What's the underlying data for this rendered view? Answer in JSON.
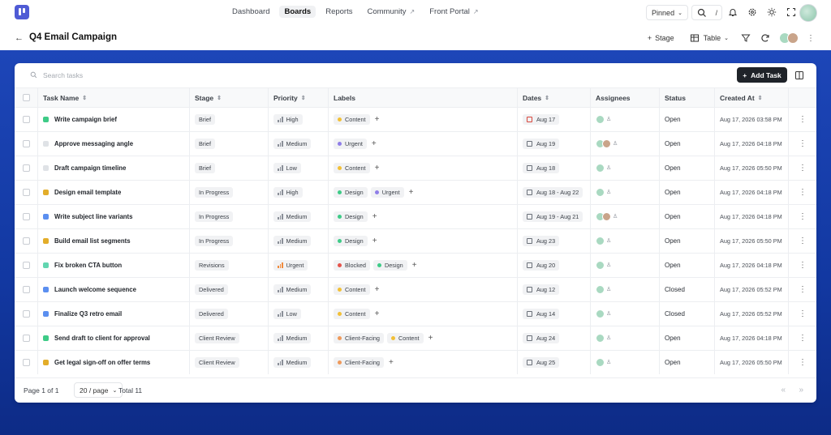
{
  "nav": {
    "links": [
      {
        "label": "Dashboard",
        "active": false,
        "external": false
      },
      {
        "label": "Boards",
        "active": true,
        "external": false
      },
      {
        "label": "Reports",
        "active": false,
        "external": false
      },
      {
        "label": "Community",
        "active": false,
        "external": true
      },
      {
        "label": "Front Portal",
        "active": false,
        "external": true
      }
    ],
    "pinned_label": "Pinned",
    "search_shortcut": "/"
  },
  "header": {
    "title": "Q4 Email Campaign",
    "stage_button": "Stage",
    "view_button": "Table"
  },
  "toolbar": {
    "search_placeholder": "Search tasks",
    "add_task_label": "Add Task"
  },
  "table": {
    "columns": {
      "name": "Task Name",
      "stage": "Stage",
      "priority": "Priority",
      "labels": "Labels",
      "dates": "Dates",
      "assignees": "Assignees",
      "status": "Status",
      "created": "Created At"
    },
    "rows": [
      {
        "color": "#3ecb87",
        "name": "Write campaign brief",
        "stage": "Brief",
        "priority": "High",
        "labels": [
          {
            "text": "Content",
            "color": "#f2c037"
          }
        ],
        "date": "Aug 17",
        "overdue": true,
        "assignees": 1,
        "status": "Open",
        "created": "Aug 17, 2026 03:58 PM"
      },
      {
        "color": "#dfe2e6",
        "name": "Approve messaging angle",
        "stage": "Brief",
        "priority": "Medium",
        "labels": [
          {
            "text": "Urgent",
            "color": "#8f7ee8"
          }
        ],
        "date": "Aug 19",
        "overdue": false,
        "assignees": 2,
        "status": "Open",
        "created": "Aug 17, 2026 04:18 PM"
      },
      {
        "color": "#dfe2e6",
        "name": "Draft campaign timeline",
        "stage": "Brief",
        "priority": "Low",
        "labels": [
          {
            "text": "Content",
            "color": "#f2c037"
          }
        ],
        "date": "Aug 18",
        "overdue": false,
        "assignees": 1,
        "status": "Open",
        "created": "Aug 17, 2026 05:50 PM"
      },
      {
        "color": "#e3ad2a",
        "name": "Design email template",
        "stage": "In Progress",
        "priority": "High",
        "labels": [
          {
            "text": "Design",
            "color": "#3ecb87"
          },
          {
            "text": "Urgent",
            "color": "#8f7ee8"
          }
        ],
        "date": "Aug 18 - Aug 22",
        "overdue": false,
        "assignees": 1,
        "status": "Open",
        "created": "Aug 17, 2026 04:18 PM"
      },
      {
        "color": "#5b8ff0",
        "name": "Write subject line variants",
        "stage": "In Progress",
        "priority": "Medium",
        "labels": [
          {
            "text": "Design",
            "color": "#3ecb87"
          }
        ],
        "date": "Aug 19 - Aug 21",
        "overdue": false,
        "assignees": 2,
        "status": "Open",
        "created": "Aug 17, 2026 04:18 PM"
      },
      {
        "color": "#e3ad2a",
        "name": "Build email list segments",
        "stage": "In Progress",
        "priority": "Medium",
        "labels": [
          {
            "text": "Design",
            "color": "#3ecb87"
          }
        ],
        "date": "Aug 23",
        "overdue": false,
        "assignees": 1,
        "status": "Open",
        "created": "Aug 17, 2026 05:50 PM"
      },
      {
        "color": "#62d6b0",
        "name": "Fix broken CTA button",
        "stage": "Revisions",
        "priority": "Urgent",
        "labels": [
          {
            "text": "Blocked",
            "color": "#e5534b"
          },
          {
            "text": "Design",
            "color": "#3ecb87"
          }
        ],
        "date": "Aug 20",
        "overdue": false,
        "assignees": 1,
        "status": "Open",
        "created": "Aug 17, 2026 04:18 PM"
      },
      {
        "color": "#5b8ff0",
        "name": "Launch welcome sequence",
        "stage": "Delivered",
        "priority": "Medium",
        "labels": [
          {
            "text": "Content",
            "color": "#f2c037"
          }
        ],
        "date": "Aug 12",
        "overdue": false,
        "assignees": 1,
        "status": "Closed",
        "created": "Aug 17, 2026 05:52 PM"
      },
      {
        "color": "#5b8ff0",
        "name": "Finalize Q3 retro email",
        "stage": "Delivered",
        "priority": "Low",
        "labels": [
          {
            "text": "Content",
            "color": "#f2c037"
          }
        ],
        "date": "Aug 14",
        "overdue": false,
        "assignees": 1,
        "status": "Closed",
        "created": "Aug 17, 2026 05:52 PM"
      },
      {
        "color": "#3ecb87",
        "name": "Send draft to client for approval",
        "stage": "Client Review",
        "priority": "Medium",
        "labels": [
          {
            "text": "Client-Facing",
            "color": "#ef9a5b"
          },
          {
            "text": "Content",
            "color": "#f2c037"
          }
        ],
        "date": "Aug 24",
        "overdue": false,
        "assignees": 1,
        "status": "Open",
        "created": "Aug 17, 2026 04:18 PM"
      },
      {
        "color": "#e3ad2a",
        "name": "Get legal sign-off on offer terms",
        "stage": "Client Review",
        "priority": "Medium",
        "labels": [
          {
            "text": "Client-Facing",
            "color": "#ef9a5b"
          }
        ],
        "date": "Aug 25",
        "overdue": false,
        "assignees": 1,
        "status": "Open",
        "created": "Aug 17, 2026 05:50 PM"
      }
    ]
  },
  "footer": {
    "page_text": "Page 1 of 1",
    "page_size": "20 / page",
    "total_text": "Total 11"
  },
  "colors": {
    "accent": "#4f5bd5",
    "stage_background": "#1d46b8",
    "priority_urgent": "#f08a3c",
    "overdue": "#d8453b"
  }
}
